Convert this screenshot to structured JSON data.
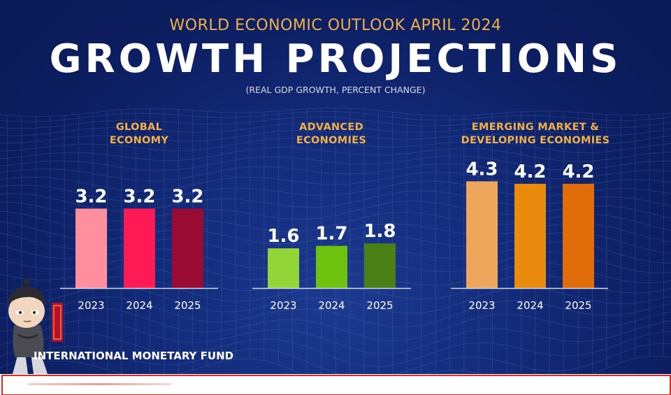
{
  "header": {
    "supertitle": "WORLD ECONOMIC OUTLOOK APRIL 2024",
    "title": "GROWTH PROJECTIONS",
    "subtitle": "(REAL GDP GROWTH, PERCENT CHANGE)"
  },
  "footer": {
    "organization": "INTERNATIONAL MONETARY FUND"
  },
  "chart_data": [
    {
      "type": "bar",
      "title_lines": [
        "GLOBAL",
        "ECONOMY"
      ],
      "categories": [
        "2023",
        "2024",
        "2025"
      ],
      "values": [
        3.2,
        3.2,
        3.2
      ],
      "value_labels": [
        "3.2",
        "3.2",
        "3.2"
      ],
      "colors": [
        "#ff8e9f",
        "#ff1a55",
        "#9a0b33"
      ]
    },
    {
      "type": "bar",
      "title_lines": [
        "ADVANCED",
        "ECONOMIES"
      ],
      "categories": [
        "2023",
        "2024",
        "2025"
      ],
      "values": [
        1.6,
        1.7,
        1.8
      ],
      "value_labels": [
        "1.6",
        "1.7",
        "1.8"
      ],
      "colors": [
        "#93d436",
        "#6cc20c",
        "#4a7f15"
      ]
    },
    {
      "type": "bar",
      "title_lines": [
        "EMERGING MARKET &",
        "DEVELOPING ECONOMIES"
      ],
      "categories": [
        "2023",
        "2024",
        "2025"
      ],
      "values": [
        4.3,
        4.2,
        4.2
      ],
      "value_labels": [
        "4.3",
        "4.2",
        "4.2"
      ],
      "colors": [
        "#eda65c",
        "#ea8b0e",
        "#e06c0a"
      ]
    }
  ]
}
